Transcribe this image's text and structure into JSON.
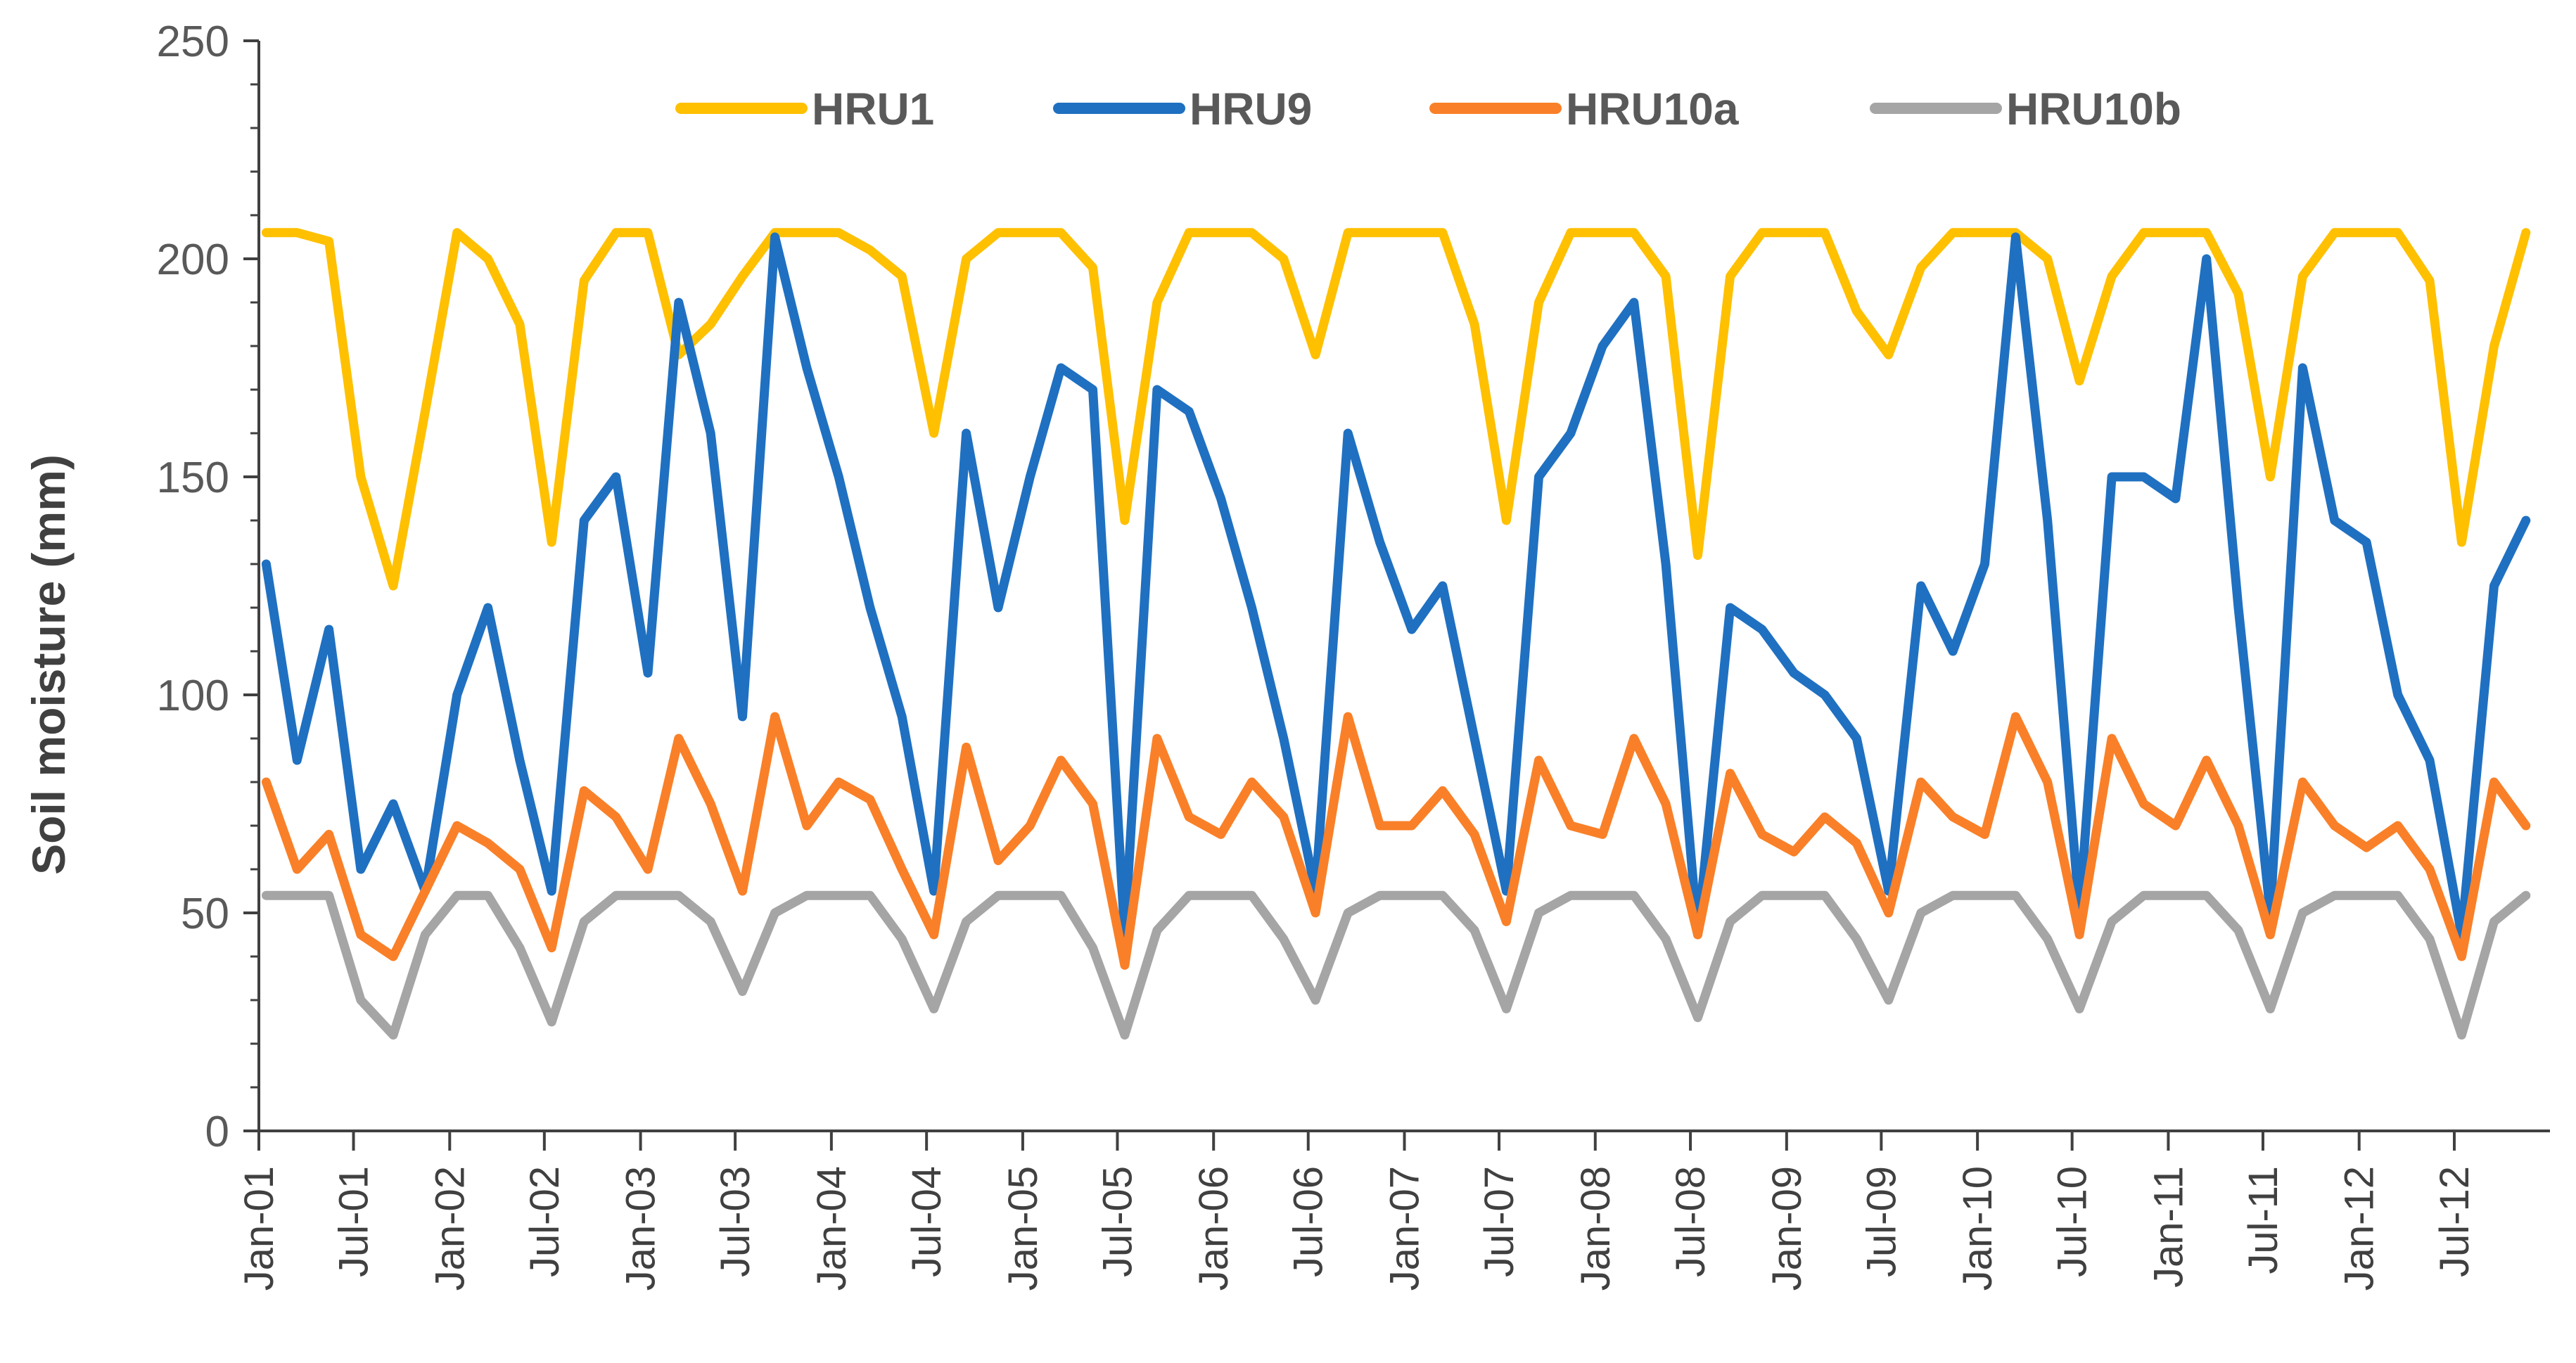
{
  "chart_data": {
    "type": "line",
    "title": "",
    "xlabel": "",
    "ylabel": "Soil moisture (mm)",
    "ylim": [
      0,
      250
    ],
    "yticks": [
      0,
      50,
      100,
      150,
      200,
      250
    ],
    "xlim": [
      "2001-01-01",
      "2012-12-31"
    ],
    "xtick_labels": [
      "Jan-01",
      "Jul-01",
      "Jan-02",
      "Jul-02",
      "Jan-03",
      "Jul-03",
      "Jan-04",
      "Jul-04",
      "Jan-05",
      "Jul-05",
      "Jan-06",
      "Jul-06",
      "Jan-07",
      "Jul-07",
      "Jan-08",
      "Jul-08",
      "Jan-09",
      "Jul-09",
      "Jan-10",
      "Jul-10",
      "Jan-11",
      "Jul-11",
      "Jan-12",
      "Jul-12"
    ],
    "grid": false,
    "legend_position": "top",
    "x": [
      "2001-01",
      "2001-03",
      "2001-05",
      "2001-07",
      "2001-09",
      "2001-11",
      "2002-01",
      "2002-03",
      "2002-05",
      "2002-07",
      "2002-09",
      "2002-11",
      "2003-01",
      "2003-03",
      "2003-05",
      "2003-07",
      "2003-09",
      "2003-11",
      "2004-01",
      "2004-03",
      "2004-05",
      "2004-07",
      "2004-09",
      "2004-11",
      "2005-01",
      "2005-03",
      "2005-05",
      "2005-07",
      "2005-09",
      "2005-11",
      "2006-01",
      "2006-03",
      "2006-05",
      "2006-07",
      "2006-09",
      "2006-11",
      "2007-01",
      "2007-03",
      "2007-05",
      "2007-07",
      "2007-09",
      "2007-11",
      "2008-01",
      "2008-03",
      "2008-05",
      "2008-07",
      "2008-09",
      "2008-11",
      "2009-01",
      "2009-03",
      "2009-05",
      "2009-07",
      "2009-09",
      "2009-11",
      "2010-01",
      "2010-03",
      "2010-05",
      "2010-07",
      "2010-09",
      "2010-11",
      "2011-01",
      "2011-03",
      "2011-05",
      "2011-07",
      "2011-09",
      "2011-11",
      "2012-01",
      "2012-03",
      "2012-05",
      "2012-07",
      "2012-09",
      "2012-11"
    ],
    "series": [
      {
        "name": "HRU1",
        "color": "#FFC000",
        "values": [
          206,
          206,
          204,
          150,
          125,
          165,
          206,
          200,
          185,
          135,
          195,
          206,
          206,
          178,
          185,
          196,
          206,
          206,
          206,
          202,
          196,
          160,
          200,
          206,
          206,
          206,
          198,
          140,
          190,
          206,
          206,
          206,
          200,
          178,
          206,
          206,
          206,
          206,
          185,
          140,
          190,
          206,
          206,
          206,
          196,
          132,
          196,
          206,
          206,
          206,
          188,
          178,
          198,
          206,
          206,
          206,
          200,
          172,
          196,
          206,
          206,
          206,
          192,
          150,
          196,
          206,
          206,
          206,
          195,
          135,
          180,
          206
        ]
      },
      {
        "name": "HRU9",
        "color": "#1F70C1",
        "values": [
          130,
          85,
          115,
          60,
          75,
          55,
          100,
          120,
          85,
          55,
          140,
          150,
          105,
          190,
          160,
          95,
          205,
          175,
          150,
          120,
          95,
          55,
          160,
          120,
          150,
          175,
          170,
          45,
          170,
          165,
          145,
          120,
          90,
          55,
          160,
          135,
          115,
          125,
          90,
          55,
          150,
          160,
          180,
          190,
          130,
          45,
          120,
          115,
          105,
          100,
          90,
          55,
          125,
          110,
          130,
          205,
          140,
          50,
          150,
          150,
          145,
          200,
          120,
          50,
          175,
          140,
          135,
          100,
          85,
          45,
          125,
          140
        ]
      },
      {
        "name": "HRU10a",
        "color": "#F98028",
        "values": [
          80,
          60,
          68,
          45,
          40,
          55,
          70,
          66,
          60,
          42,
          78,
          72,
          60,
          90,
          75,
          55,
          95,
          70,
          80,
          76,
          60,
          45,
          88,
          62,
          70,
          85,
          75,
          38,
          90,
          72,
          68,
          80,
          72,
          50,
          95,
          70,
          70,
          78,
          68,
          48,
          85,
          70,
          68,
          90,
          75,
          45,
          82,
          68,
          64,
          72,
          66,
          50,
          80,
          72,
          68,
          95,
          80,
          45,
          90,
          75,
          70,
          85,
          70,
          45,
          80,
          70,
          65,
          70,
          60,
          40,
          80,
          70
        ]
      },
      {
        "name": "HRU10b",
        "color": "#A5A5A5",
        "values": [
          54,
          54,
          54,
          30,
          22,
          45,
          54,
          54,
          42,
          25,
          48,
          54,
          54,
          54,
          48,
          32,
          50,
          54,
          54,
          54,
          44,
          28,
          48,
          54,
          54,
          54,
          42,
          22,
          46,
          54,
          54,
          54,
          44,
          30,
          50,
          54,
          54,
          54,
          46,
          28,
          50,
          54,
          54,
          54,
          44,
          26,
          48,
          54,
          54,
          54,
          44,
          30,
          50,
          54,
          54,
          54,
          44,
          28,
          48,
          54,
          54,
          54,
          46,
          28,
          50,
          54,
          54,
          54,
          44,
          22,
          48,
          54
        ]
      }
    ]
  }
}
